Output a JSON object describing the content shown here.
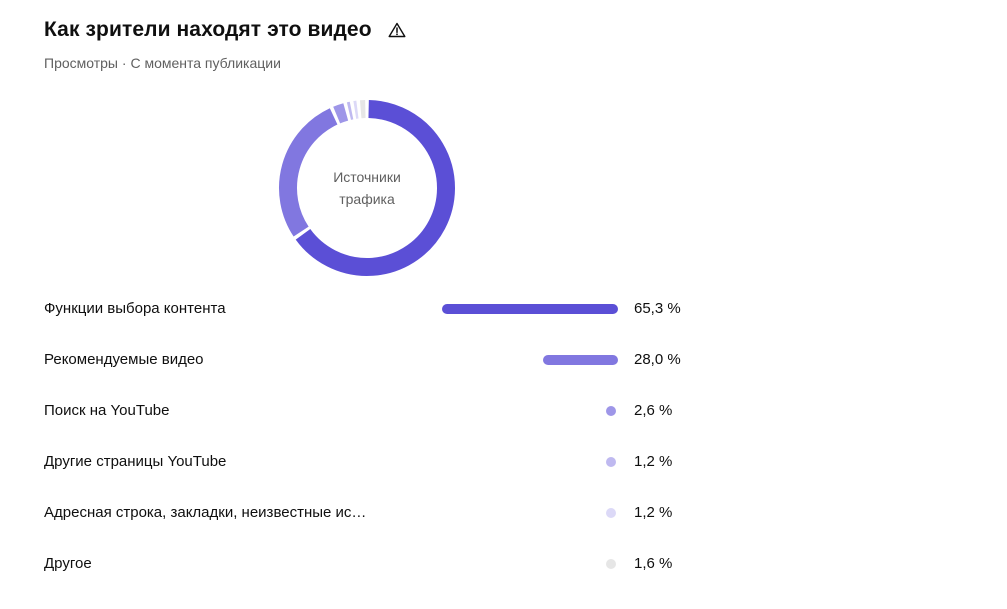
{
  "header": {
    "title": "Как зрители находят это видео",
    "icon": "warning-icon",
    "subtitle": "Просмотры · С момента публикации"
  },
  "donut": {
    "center_line1": "Источники",
    "center_line2": "трафика"
  },
  "chart_data": {
    "type": "pie",
    "categories": [
      "Функции выбора контента",
      "Рекомендуемые видео",
      "Поиск на YouTube",
      "Другие страницы YouTube",
      "Адресная строка, закладки, неизвестные ис…",
      "Другое"
    ],
    "values": [
      65.3,
      28.0,
      2.6,
      1.2,
      1.2,
      1.6
    ],
    "value_labels": [
      "65,3 %",
      "28,0 %",
      "2,6 %",
      "1,2 %",
      "1,2 %",
      "1,6 %"
    ],
    "colors": [
      "#5b4fd6",
      "#8177e0",
      "#9e96e8",
      "#bfb9f0",
      "#dcd9f7",
      "#e6e6e6"
    ],
    "title": "Как зрители находят это видео",
    "subtitle": "Просмотры · С момента публикации"
  }
}
